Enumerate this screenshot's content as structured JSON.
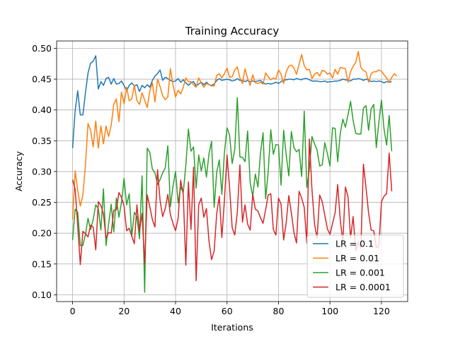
{
  "chart_data": {
    "type": "line",
    "title": "Training Accuracy",
    "xlabel": "Iterations",
    "ylabel": "Accuracy",
    "xlim": [
      -6.2,
      130.2
    ],
    "ylim": [
      0.089,
      0.512
    ],
    "xticks": [
      0,
      20,
      40,
      60,
      80,
      100,
      120
    ],
    "xtick_labels": [
      "0",
      "20",
      "40",
      "60",
      "80",
      "100",
      "120"
    ],
    "yticks": [
      0.1,
      0.15,
      0.2,
      0.25,
      0.3,
      0.35,
      0.4,
      0.45,
      0.5
    ],
    "ytick_labels": [
      "0.10",
      "0.15",
      "0.20",
      "0.25",
      "0.30",
      "0.35",
      "0.40",
      "0.45",
      "0.50"
    ],
    "grid": true,
    "legend_position": "lower-right",
    "series": [
      {
        "name": "LR = 0.1",
        "color": "#1f77b4",
        "values": [
          0.338,
          0.399,
          0.431,
          0.392,
          0.392,
          0.428,
          0.46,
          0.476,
          0.479,
          0.488,
          0.434,
          0.446,
          0.44,
          0.451,
          0.453,
          0.442,
          0.451,
          0.442,
          0.443,
          0.447,
          0.44,
          0.431,
          0.44,
          0.444,
          0.439,
          0.441,
          0.43,
          0.44,
          0.436,
          0.441,
          0.437,
          0.448,
          0.455,
          0.459,
          0.465,
          0.448,
          0.453,
          0.451,
          0.448,
          0.446,
          0.447,
          0.451,
          0.445,
          0.449,
          0.444,
          0.44,
          0.444,
          0.446,
          0.439,
          0.442,
          0.445,
          0.441,
          0.445,
          0.441,
          0.44,
          0.442,
          0.448,
          0.451,
          0.448,
          0.449,
          0.45,
          0.449,
          0.447,
          0.448,
          0.451,
          0.448,
          0.448,
          0.446,
          0.448,
          0.446,
          0.447,
          0.446,
          0.447,
          0.448,
          0.444,
          0.442,
          0.443,
          0.442,
          0.443,
          0.445,
          0.443,
          0.446,
          0.448,
          0.449,
          0.45,
          0.45,
          0.449,
          0.451,
          0.45,
          0.449,
          0.451,
          0.451,
          0.449,
          0.447,
          0.447,
          0.447,
          0.446,
          0.446,
          0.447,
          0.445,
          0.446,
          0.446,
          0.447,
          0.447,
          0.448,
          0.45,
          0.449,
          0.448,
          0.447,
          0.45,
          0.45,
          0.451,
          0.45,
          0.448,
          0.45,
          0.449,
          0.446,
          0.447,
          0.446,
          0.447,
          0.446,
          0.444,
          0.446,
          0.445,
          0.446
        ]
      },
      {
        "name": "LR = 0.01",
        "color": "#ff7f0e",
        "values": [
          0.222,
          0.301,
          0.269,
          0.244,
          0.262,
          0.31,
          0.378,
          0.367,
          0.34,
          0.382,
          0.338,
          0.374,
          0.345,
          0.374,
          0.357,
          0.375,
          0.409,
          0.418,
          0.381,
          0.429,
          0.41,
          0.437,
          0.415,
          0.418,
          0.44,
          0.415,
          0.409,
          0.428,
          0.416,
          0.404,
          0.431,
          0.444,
          0.413,
          0.45,
          0.438,
          0.423,
          0.417,
          0.421,
          0.467,
          0.441,
          0.421,
          0.432,
          0.426,
          0.437,
          0.452,
          0.446,
          0.446,
          0.441,
          0.437,
          0.452,
          0.444,
          0.437,
          0.443,
          0.441,
          0.439,
          0.439,
          0.456,
          0.459,
          0.452,
          0.459,
          0.468,
          0.453,
          0.454,
          0.465,
          0.47,
          0.452,
          0.443,
          0.467,
          0.451,
          0.44,
          0.457,
          0.444,
          0.443,
          0.445,
          0.442,
          0.46,
          0.454,
          0.449,
          0.452,
          0.45,
          0.465,
          0.458,
          0.443,
          0.462,
          0.471,
          0.473,
          0.468,
          0.458,
          0.474,
          0.49,
          0.472,
          0.465,
          0.466,
          0.451,
          0.458,
          0.461,
          0.455,
          0.464,
          0.463,
          0.458,
          0.46,
          0.452,
          0.466,
          0.458,
          0.469,
          0.468,
          0.467,
          0.445,
          0.462,
          0.471,
          0.477,
          0.495,
          0.469,
          0.464,
          0.462,
          0.445,
          0.459,
          0.462,
          0.462,
          0.465,
          0.463,
          0.457,
          0.452,
          0.445,
          0.453,
          0.459,
          0.455
        ]
      },
      {
        "name": "LR = 0.001",
        "color": "#2ca02c",
        "values": [
          0.189,
          0.239,
          0.234,
          0.18,
          0.18,
          0.198,
          0.224,
          0.206,
          0.222,
          0.246,
          0.24,
          0.205,
          0.272,
          0.18,
          0.215,
          0.247,
          0.202,
          0.257,
          0.226,
          0.25,
          0.289,
          0.246,
          0.264,
          0.195,
          0.234,
          0.227,
          0.191,
          0.293,
          0.104,
          0.338,
          0.331,
          0.304,
          0.298,
          0.279,
          0.287,
          0.298,
          0.306,
          0.342,
          0.243,
          0.276,
          0.3,
          0.249,
          0.275,
          0.266,
          0.31,
          0.369,
          0.333,
          0.34,
          0.273,
          0.327,
          0.301,
          0.322,
          0.291,
          0.329,
          0.349,
          0.242,
          0.299,
          0.319,
          0.263,
          0.331,
          0.371,
          0.359,
          0.313,
          0.336,
          0.42,
          0.324,
          0.323,
          0.316,
          0.366,
          0.282,
          0.26,
          0.296,
          0.275,
          0.33,
          0.363,
          0.256,
          0.3,
          0.368,
          0.328,
          0.344,
          0.343,
          0.278,
          0.367,
          0.327,
          0.293,
          0.365,
          0.339,
          0.332,
          0.336,
          0.292,
          0.398,
          0.274,
          0.304,
          0.357,
          0.345,
          0.335,
          0.309,
          0.311,
          0.347,
          0.329,
          0.309,
          0.371,
          0.37,
          0.316,
          0.362,
          0.385,
          0.372,
          0.392,
          0.414,
          0.383,
          0.362,
          0.361,
          0.361,
          0.403,
          0.407,
          0.367,
          0.402,
          0.409,
          0.339,
          0.38,
          0.416,
          0.369,
          0.343,
          0.391,
          0.333
        ]
      },
      {
        "name": "LR = 0.0001",
        "color": "#d62728",
        "values": [
          0.287,
          0.271,
          0.212,
          0.149,
          0.203,
          0.199,
          0.194,
          0.213,
          0.21,
          0.173,
          0.251,
          0.245,
          0.231,
          0.192,
          0.201,
          0.2,
          0.237,
          0.238,
          0.266,
          0.258,
          0.244,
          0.204,
          0.208,
          0.195,
          0.183,
          0.246,
          0.203,
          0.232,
          0.151,
          0.262,
          0.243,
          0.222,
          0.21,
          0.303,
          0.253,
          0.227,
          0.24,
          0.263,
          0.23,
          0.216,
          0.204,
          0.224,
          0.286,
          0.263,
          0.148,
          0.283,
          0.206,
          0.307,
          0.123,
          0.246,
          0.257,
          0.226,
          0.24,
          0.187,
          0.157,
          0.171,
          0.232,
          0.26,
          0.193,
          0.254,
          0.327,
          0.274,
          0.209,
          0.197,
          0.234,
          0.311,
          0.218,
          0.246,
          0.215,
          0.205,
          0.263,
          0.239,
          0.236,
          0.225,
          0.216,
          0.238,
          0.262,
          0.264,
          0.206,
          0.197,
          0.257,
          0.247,
          0.189,
          0.217,
          0.261,
          0.233,
          0.201,
          0.184,
          0.268,
          0.257,
          0.242,
          0.184,
          0.353,
          0.271,
          0.215,
          0.192,
          0.262,
          0.251,
          0.229,
          0.207,
          0.198,
          0.216,
          0.233,
          0.279,
          0.222,
          0.185,
          0.275,
          0.259,
          0.192,
          0.227,
          0.172,
          0.185,
          0.176,
          0.312,
          0.274,
          0.233,
          0.205,
          0.204,
          0.177,
          0.178,
          0.251,
          0.26,
          0.264,
          0.33,
          0.268
        ]
      }
    ]
  }
}
